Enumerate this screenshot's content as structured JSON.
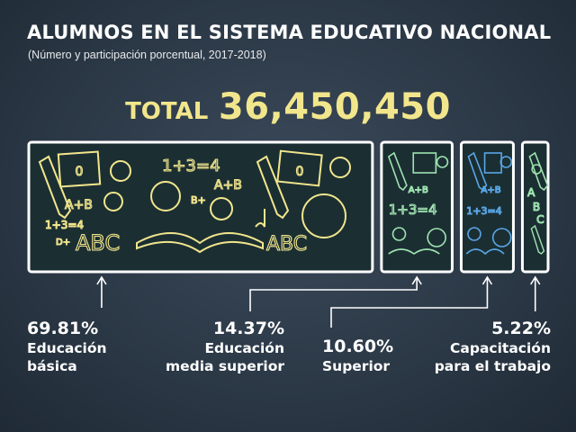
{
  "header": {
    "title": "ALUMNOS EN EL SISTEMA EDUCATIVO NACIONAL",
    "subtitle": "(Número y participación porcentual, 2017-2018)"
  },
  "total": {
    "label": "TOTAL",
    "value": "36,450,450"
  },
  "colors": {
    "background": "#2c3947",
    "chalk": "#ffffff",
    "panel": "#1b2f33",
    "yellow": "#f2e68c",
    "green": "#9fe3b0",
    "blue": "#59a6e6",
    "total": "#f2e68c"
  },
  "labels": [
    {
      "pct": "69.81%",
      "cat_lines": [
        "Educación",
        "básica"
      ]
    },
    {
      "pct": "14.37%",
      "cat_lines": [
        "Educación",
        "media superior"
      ]
    },
    {
      "pct": "10.60%",
      "cat_lines": [
        "Superior"
      ]
    },
    {
      "pct": "5.22%",
      "cat_lines": [
        "Capacitación",
        "para el trabajo"
      ]
    }
  ],
  "chart_data": {
    "type": "bar",
    "title": "ALUMNOS EN EL SISTEMA EDUCATIVO NACIONAL",
    "subtitle": "(Número y participación porcentual, 2017-2018)",
    "total": 36450450,
    "categories": [
      "Educación básica",
      "Educación media superior",
      "Superior",
      "Capacitación para el trabajo"
    ],
    "values": [
      69.81,
      14.37,
      10.6,
      5.22
    ],
    "unit": "%",
    "orientation": "horizontal-proportional",
    "legend": "none",
    "grid": false
  },
  "icons": [
    "pencil-icon",
    "calculator-icon",
    "apple-icon",
    "lightbulb-icon",
    "globe-icon",
    "book-icon",
    "ball-icon",
    "music-note-icon"
  ],
  "doodles": {
    "ab": "A+B",
    "eq": "1+3=4",
    "abc": "ABC",
    "bplus": "B+",
    "dplus": "D+",
    "zero": "0"
  }
}
